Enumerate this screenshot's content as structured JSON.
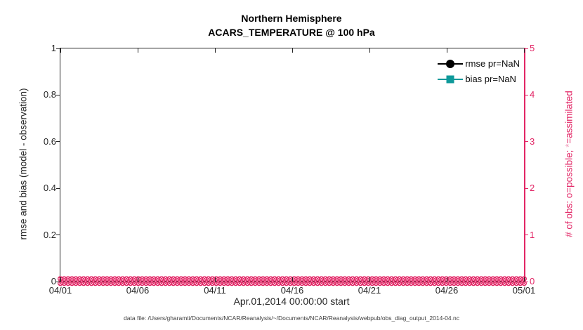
{
  "title": {
    "line1": "Northern Hemisphere",
    "line2": "ACARS_TEMPERATURE @ 100 hPa"
  },
  "axes": {
    "left": {
      "label": "rmse and bias (model - observation)",
      "ticks": [
        "0",
        "0.2",
        "0.4",
        "0.6",
        "0.8",
        "1"
      ],
      "range": [
        0,
        1
      ],
      "color": "#262626"
    },
    "right": {
      "label_prefix": "# of obs: o=possible; ",
      "label_marker": "*",
      "label_suffix": "=assimilated",
      "ticks": [
        "0",
        "1",
        "2",
        "3",
        "4",
        "5"
      ],
      "range": [
        0,
        5
      ],
      "color": "#e22565",
      "marker_color": "#f19cba"
    },
    "x": {
      "ticks": [
        "04/01",
        "04/06",
        "04/11",
        "04/16",
        "04/21",
        "04/26",
        "05/01"
      ],
      "label": "Apr.01,2014 00:00:00 start"
    }
  },
  "legend": [
    {
      "label": "rmse pr=NaN",
      "marker": "circle",
      "color": "#000000"
    },
    {
      "label": "bias pr=NaN",
      "marker": "square",
      "color": "#0e999a"
    }
  ],
  "caption": "data file: /Users/gharamti/Documents/NCAR/Reanalysis/~/Documents/NCAR/Reanalysis/webpub/obs_diag_output_2014-04.nc",
  "colors": {
    "frame": "#262626",
    "obs_pink": "#e22565",
    "rmse_black": "#000000",
    "bias_teal": "#0e999a"
  },
  "chart_data": {
    "type": "line",
    "title": "Northern Hemisphere — ACARS_TEMPERATURE @ 100 hPa",
    "xlabel": "Apr.01,2014 00:00:00 start",
    "ylabel_left": "rmse and bias (model - observation)",
    "ylabel_right": "# of obs: o=possible; *=assimilated",
    "x_tick_labels": [
      "04/01",
      "04/06",
      "04/11",
      "04/16",
      "04/21",
      "04/26",
      "05/01"
    ],
    "ylim_left": [
      0,
      1
    ],
    "ylim_right": [
      0,
      5
    ],
    "grid": false,
    "legend_position": "top-right-inside",
    "series": [
      {
        "name": "rmse pr=NaN",
        "axis": "left",
        "marker": "circle",
        "color": "#000000",
        "values": "NaN — no curve plotted"
      },
      {
        "name": "bias pr=NaN",
        "axis": "left",
        "marker": "square",
        "color": "#0e999a",
        "values": "NaN — no curve plotted"
      },
      {
        "name": "# of obs possible (o)",
        "axis": "right",
        "marker": "o",
        "color": "#e22565",
        "value_constant": 0,
        "n_points": 120
      },
      {
        "name": "# of obs assimilated (*)",
        "axis": "right",
        "marker": "x",
        "color": "#e22565",
        "value_constant": 0,
        "n_points": 120
      }
    ]
  }
}
